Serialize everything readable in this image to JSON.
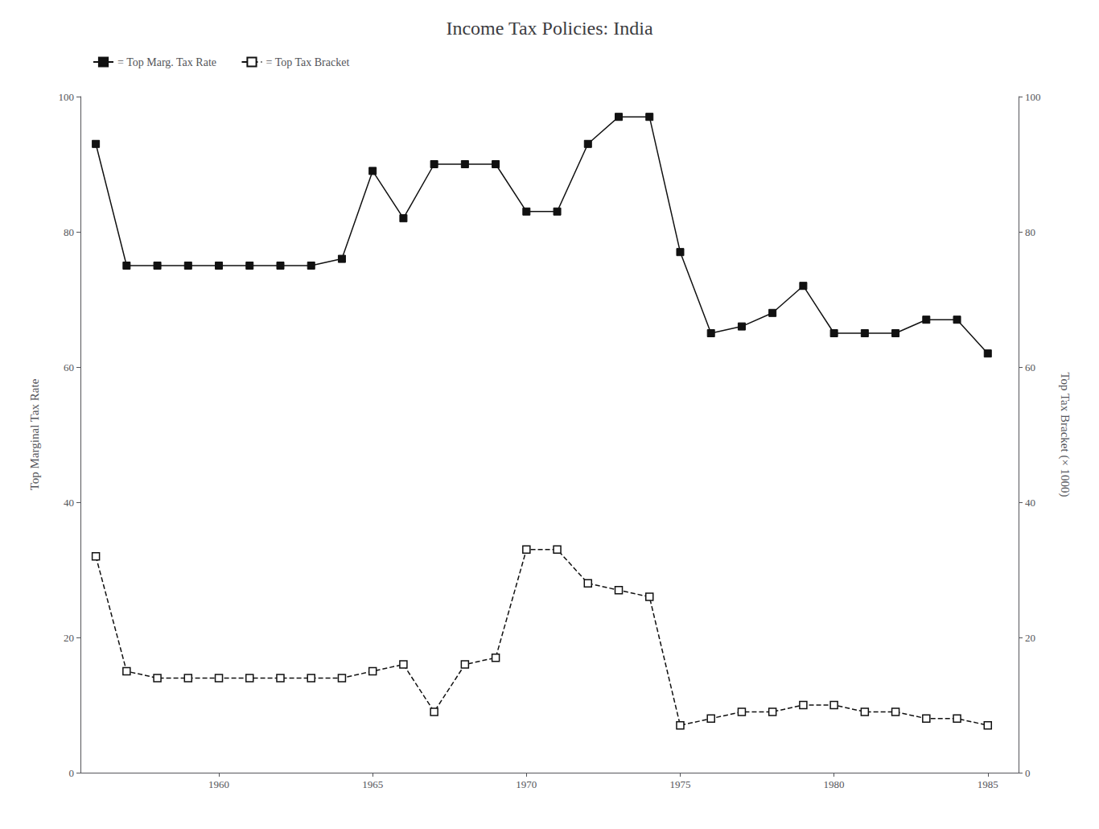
{
  "chart_data": {
    "type": "line",
    "title": "Income Tax Policies: India",
    "ylabel": "Top Marginal Tax Rate",
    "y2label": "Top Tax Bracket (× 1000)",
    "xlim": [
      1955.5,
      1986
    ],
    "xticks": [
      1960,
      1965,
      1970,
      1975,
      1980,
      1985
    ],
    "ylim": [
      0,
      100
    ],
    "yticks": [
      0,
      20,
      40,
      60,
      80,
      100
    ],
    "y2lim": [
      0,
      100
    ],
    "y2ticks": [
      0,
      20,
      40,
      60,
      80,
      100
    ],
    "grid": false,
    "legend": "upper left",
    "x": [
      1956,
      1957,
      1958,
      1959,
      1960,
      1961,
      1962,
      1963,
      1964,
      1965,
      1966,
      1967,
      1968,
      1969,
      1970,
      1971,
      1972,
      1973,
      1974,
      1975,
      1976,
      1977,
      1978,
      1979,
      1980,
      1981,
      1982,
      1983,
      1984,
      1985
    ],
    "series": [
      {
        "name": "= Top Marg. Tax Rate",
        "color": "#111111",
        "marker": "square",
        "line_style": "solid",
        "values": [
          93,
          75,
          75,
          75,
          75,
          75,
          75,
          75,
          76,
          89,
          82,
          90,
          90,
          90,
          83,
          83,
          93,
          97,
          97,
          77,
          65,
          66,
          68,
          72,
          65,
          65,
          65,
          67,
          67,
          62
        ]
      },
      {
        "name": "= Top Tax Bracket",
        "color": "#111111",
        "marker": "square_open",
        "line_style": "dashed",
        "axis": "y2",
        "values": [
          32,
          15,
          14,
          14,
          14,
          14,
          14,
          14,
          14,
          15,
          16,
          9,
          16,
          17,
          33,
          33,
          28,
          27,
          26,
          7,
          8,
          9,
          9,
          10,
          10,
          9,
          9,
          8,
          8,
          7
        ]
      }
    ]
  }
}
